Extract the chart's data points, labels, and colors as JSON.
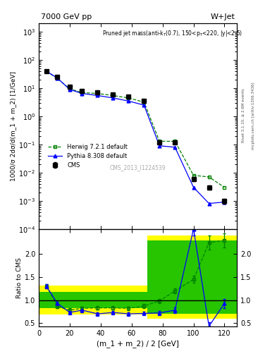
{
  "title_left": "7000 GeV pp",
  "title_right": "W+Jet",
  "watermark": "CMS_2013_I1224539",
  "ylabel_main": "1000/σ 2dσ/d(m_1 + m_2) [1/GeV]",
  "ylabel_ratio": "Ratio to CMS",
  "xlabel": "(m_1 + m_2) / 2 [GeV]",
  "rivet_label": "Rivet 3.1.10, ≥ 2.6M events",
  "mcplots_label": "mcplots.cern.ch [arXiv:1306.3436]",
  "cms_x": [
    5,
    12,
    20,
    28,
    38,
    48,
    58,
    68,
    78,
    88,
    100,
    110,
    120
  ],
  "cms_y": [
    40,
    25,
    11,
    8,
    7,
    6,
    5,
    3.5,
    0.12,
    0.12,
    0.006,
    0.003,
    0.001
  ],
  "cms_yerr": [
    3,
    2,
    1,
    0.5,
    0.4,
    0.4,
    0.3,
    0.3,
    0.015,
    0.015,
    0.001,
    0.0005,
    0.0002
  ],
  "herwig_x": [
    5,
    12,
    20,
    28,
    38,
    48,
    58,
    68,
    78,
    88,
    100,
    110,
    120
  ],
  "herwig_y": [
    40,
    22,
    9.5,
    7,
    6.5,
    5.5,
    4.5,
    3.2,
    0.13,
    0.13,
    0.008,
    0.007,
    0.003
  ],
  "pythia_x": [
    5,
    12,
    20,
    28,
    38,
    48,
    58,
    68,
    78,
    88,
    100,
    110,
    120
  ],
  "pythia_y": [
    40,
    23,
    9,
    6.5,
    5.5,
    4.5,
    3.5,
    2.5,
    0.09,
    0.08,
    0.003,
    0.0008,
    0.0009
  ],
  "ratio_herwig_x": [
    5,
    12,
    20,
    28,
    38,
    48,
    58,
    68,
    78,
    88,
    100,
    110,
    120
  ],
  "ratio_herwig_y": [
    1.3,
    0.86,
    0.78,
    0.82,
    0.83,
    0.83,
    0.82,
    0.87,
    0.98,
    1.2,
    1.45,
    2.25,
    2.3
  ],
  "ratio_pythia_x": [
    5,
    12,
    20,
    28,
    38,
    48,
    58,
    68,
    78,
    88,
    100,
    110,
    120
  ],
  "ratio_pythia_y": [
    1.3,
    0.93,
    0.73,
    0.78,
    0.7,
    0.73,
    0.7,
    0.71,
    0.72,
    0.78,
    2.55,
    0.43,
    0.93
  ],
  "ratio_herwig_yerr": [
    0.05,
    0.04,
    0.04,
    0.04,
    0.04,
    0.04,
    0.04,
    0.04,
    0.05,
    0.06,
    0.08,
    0.15,
    0.15
  ],
  "ratio_pythia_yerr": [
    0.05,
    0.04,
    0.04,
    0.04,
    0.04,
    0.04,
    0.04,
    0.04,
    0.05,
    0.06,
    0.15,
    0.08,
    0.1
  ],
  "band_x_edges": [
    0,
    20,
    70,
    90,
    130
  ],
  "band_yellow_low": [
    0.68,
    0.68,
    0.6,
    0.6,
    0.6
  ],
  "band_yellow_high": [
    1.32,
    1.32,
    2.4,
    2.4,
    2.4
  ],
  "band_green_low": [
    0.82,
    0.82,
    0.7,
    0.7,
    0.7
  ],
  "band_green_high": [
    1.18,
    1.18,
    2.3,
    2.3,
    2.3
  ],
  "cms_color": "#000000",
  "herwig_color": "#008000",
  "pythia_color": "#0000ff",
  "band_yellow": "#ffff00",
  "band_green": "#00bb00",
  "main_ylim": [
    0.0001,
    2000
  ],
  "ratio_ylim": [
    0.42,
    2.55
  ],
  "ratio_yticks": [
    0.5,
    1.0,
    1.5,
    2.0
  ],
  "xlim": [
    0,
    128
  ]
}
